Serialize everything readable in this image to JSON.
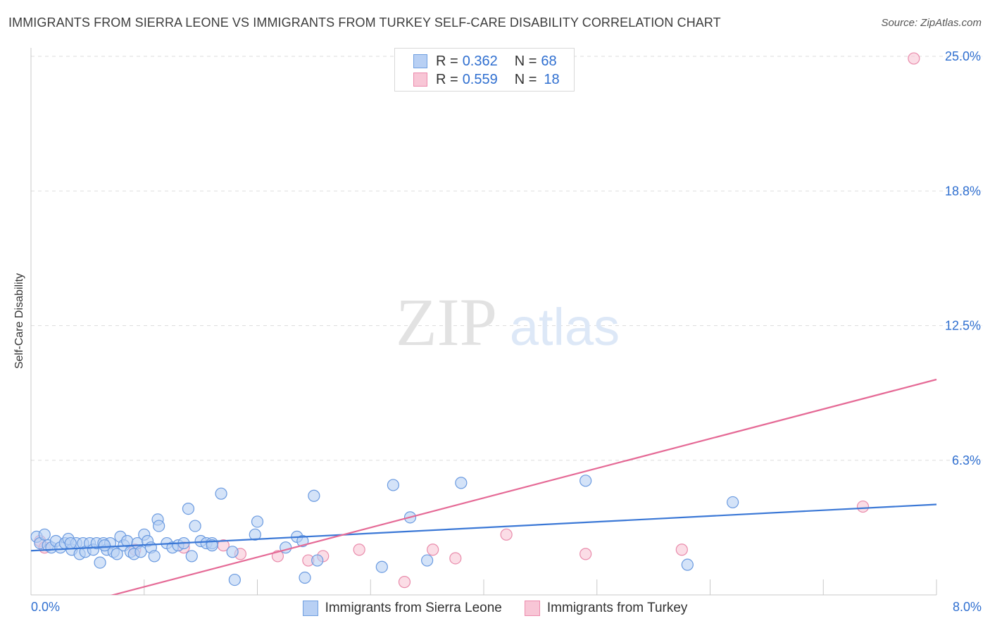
{
  "header": {
    "title": "IMMIGRANTS FROM SIERRA LEONE VS IMMIGRANTS FROM TURKEY SELF-CARE DISABILITY CORRELATION CHART",
    "source": "Source: ZipAtlas.com"
  },
  "watermark": {
    "zip": "ZIP",
    "atlas": "atlas"
  },
  "legend": {
    "rows": [
      {
        "r_label": "R =",
        "r_value": "0.362",
        "n_label": "N =",
        "n_value": "68",
        "fill": "#b8d0f4",
        "stroke": "#6f9fe0"
      },
      {
        "r_label": "R =",
        "r_value": "0.559",
        "n_label": "N =",
        "n_value": "18",
        "fill": "#f8c6d6",
        "stroke": "#ec8aac"
      }
    ]
  },
  "bottom_legend": {
    "items": [
      {
        "label": "Immigrants from Sierra Leone",
        "fill": "#b8d0f4",
        "stroke": "#6f9fe0"
      },
      {
        "label": "Immigrants from Turkey",
        "fill": "#f8c6d6",
        "stroke": "#ec8aac"
      }
    ]
  },
  "chart_data": {
    "type": "scatter",
    "title": "IMMIGRANTS FROM SIERRA LEONE VS IMMIGRANTS FROM TURKEY SELF-CARE DISABILITY CORRELATION CHART",
    "xlabel": "",
    "ylabel": "Self-Care Disability",
    "xlim": [
      0.0,
      8.0
    ],
    "ylim": [
      0.0,
      25.0
    ],
    "x_tick_labels": [
      "0.0%",
      "8.0%"
    ],
    "y_ticks": [
      6.25,
      12.5,
      18.75,
      25.0
    ],
    "y_tick_labels": [
      "6.3%",
      "12.5%",
      "18.8%",
      "25.0%"
    ],
    "grid": true,
    "colors": {
      "blue": "#3b78d6",
      "pink": "#e56a96",
      "grid": "#dddddd",
      "axis": "#c8c8c8"
    },
    "series": [
      {
        "name": "Immigrants from Sierra Leone",
        "color": "#3b78d6",
        "fill": "#b8d0f4",
        "points": [
          [
            0.05,
            2.7
          ],
          [
            0.08,
            2.4
          ],
          [
            0.12,
            2.8
          ],
          [
            0.15,
            2.3
          ],
          [
            0.18,
            2.2
          ],
          [
            0.22,
            2.5
          ],
          [
            0.26,
            2.2
          ],
          [
            0.3,
            2.4
          ],
          [
            0.33,
            2.6
          ],
          [
            0.36,
            2.1
          ],
          [
            0.4,
            2.4
          ],
          [
            0.43,
            1.9
          ],
          [
            0.46,
            2.4
          ],
          [
            0.48,
            2.0
          ],
          [
            0.52,
            2.4
          ],
          [
            0.55,
            2.1
          ],
          [
            0.58,
            2.4
          ],
          [
            0.61,
            1.5
          ],
          [
            0.64,
            2.4
          ],
          [
            0.67,
            2.1
          ],
          [
            0.7,
            2.4
          ],
          [
            0.73,
            2.0
          ],
          [
            0.76,
            1.9
          ],
          [
            0.79,
            2.7
          ],
          [
            0.82,
            2.3
          ],
          [
            0.85,
            2.5
          ],
          [
            0.88,
            2.0
          ],
          [
            0.91,
            1.9
          ],
          [
            0.94,
            2.4
          ],
          [
            0.97,
            2.0
          ],
          [
            1.0,
            2.8
          ],
          [
            1.03,
            2.5
          ],
          [
            1.06,
            2.2
          ],
          [
            1.09,
            1.8
          ],
          [
            1.12,
            3.5
          ],
          [
            1.13,
            3.2
          ],
          [
            1.2,
            2.4
          ],
          [
            1.25,
            2.2
          ],
          [
            1.3,
            2.3
          ],
          [
            1.35,
            2.4
          ],
          [
            1.39,
            4.0
          ],
          [
            1.42,
            1.8
          ],
          [
            1.45,
            3.2
          ],
          [
            1.5,
            2.5
          ],
          [
            1.55,
            2.4
          ],
          [
            1.6,
            2.4
          ],
          [
            1.68,
            4.7
          ],
          [
            1.78,
            2.0
          ],
          [
            1.8,
            0.7
          ],
          [
            1.98,
            2.8
          ],
          [
            2.0,
            3.4
          ],
          [
            2.25,
            2.2
          ],
          [
            2.35,
            2.7
          ],
          [
            2.4,
            2.5
          ],
          [
            2.42,
            0.8
          ],
          [
            2.5,
            4.6
          ],
          [
            2.53,
            1.6
          ],
          [
            3.1,
            1.3
          ],
          [
            3.2,
            5.1
          ],
          [
            3.35,
            3.6
          ],
          [
            3.5,
            1.6
          ],
          [
            3.8,
            5.2
          ],
          [
            4.9,
            5.3
          ],
          [
            5.8,
            1.4
          ],
          [
            6.2,
            4.3
          ],
          [
            0.35,
            2.4
          ],
          [
            0.65,
            2.3
          ],
          [
            1.6,
            2.3
          ]
        ]
      },
      {
        "name": "Immigrants from Turkey",
        "color": "#e56a96",
        "fill": "#f8c6d6",
        "points": [
          [
            0.08,
            2.5
          ],
          [
            0.92,
            2.1
          ],
          [
            1.7,
            2.3
          ],
          [
            1.35,
            2.2
          ],
          [
            1.85,
            1.9
          ],
          [
            2.18,
            1.8
          ],
          [
            2.45,
            1.6
          ],
          [
            2.58,
            1.8
          ],
          [
            2.9,
            2.1
          ],
          [
            3.3,
            0.6
          ],
          [
            3.55,
            2.1
          ],
          [
            3.75,
            1.7
          ],
          [
            4.2,
            2.8
          ],
          [
            4.9,
            1.9
          ],
          [
            5.75,
            2.1
          ],
          [
            7.35,
            4.1
          ],
          [
            7.8,
            24.9
          ],
          [
            0.12,
            2.2
          ]
        ]
      }
    ],
    "trendlines": [
      {
        "series": "Immigrants from Sierra Leone",
        "x": [
          0.0,
          8.0
        ],
        "y": [
          2.05,
          4.2
        ]
      },
      {
        "series": "Immigrants from Turkey",
        "x": [
          0.0,
          8.0
        ],
        "y": [
          -1.0,
          10.0
        ]
      }
    ]
  }
}
